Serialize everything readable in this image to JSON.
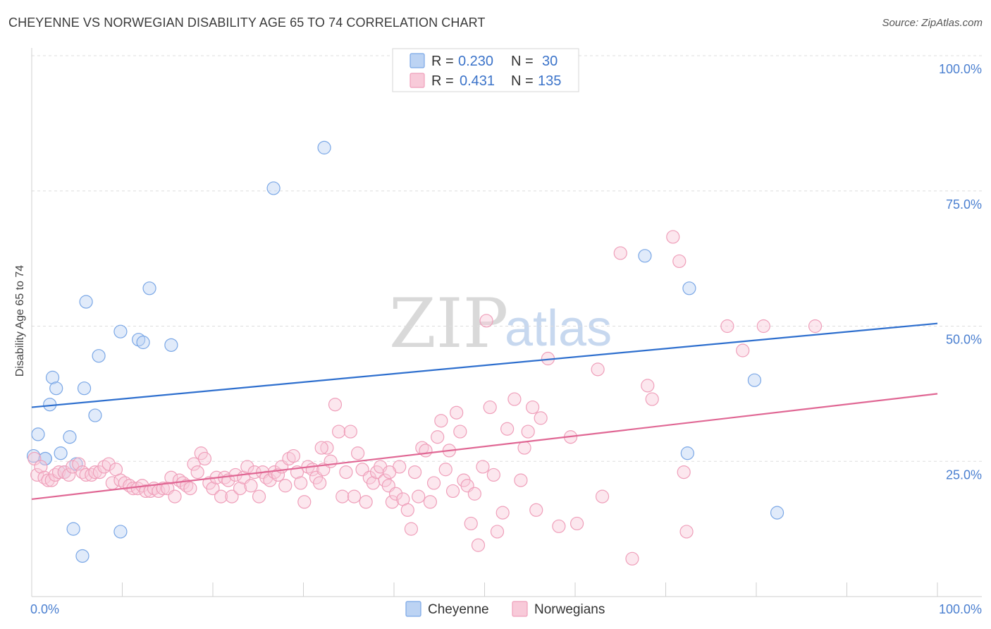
{
  "header": {
    "title": "CHEYENNE VS NORWEGIAN DISABILITY AGE 65 TO 74 CORRELATION CHART",
    "source": "Source: ZipAtlas.com"
  },
  "watermark": {
    "zip": "ZIP",
    "atlas": "atlas"
  },
  "chart_data": {
    "type": "scatter",
    "title": "CHEYENNE VS NORWEGIAN DISABILITY AGE 65 TO 74 CORRELATION CHART",
    "xlabel": "",
    "ylabel": "Disability Age 65 to 74",
    "xlim": [
      0,
      100
    ],
    "ylim": [
      0,
      100
    ],
    "x_tick_labels": [
      "0.0%",
      "100.0%"
    ],
    "y_ticks": [
      25,
      50,
      75,
      100
    ],
    "y_tick_labels": [
      "25.0%",
      "50.0%",
      "75.0%",
      "100.0%"
    ],
    "grid": true,
    "legend": [
      {
        "name": "Cheyenne",
        "r_label": "R =",
        "r_value": "0.230",
        "n_label": "N =",
        "n_value": "30"
      },
      {
        "name": "Norwegians",
        "r_label": "R =",
        "r_value": "0.431",
        "n_label": "N =",
        "n_value": "135"
      }
    ],
    "series": [
      {
        "name": "Cheyenne",
        "color": "#7aa7e6",
        "fill": "#bcd3f3",
        "line_color": "#2e6fce",
        "trend": [
          [
            0,
            35.0
          ],
          [
            100,
            50.5
          ]
        ],
        "points": [
          [
            0.2,
            26
          ],
          [
            0.7,
            30
          ],
          [
            1.5,
            25.5
          ],
          [
            2.0,
            35.5
          ],
          [
            2.3,
            40.5
          ],
          [
            2.7,
            38.5
          ],
          [
            3.2,
            26.5
          ],
          [
            3.6,
            23.0
          ],
          [
            4.2,
            29.5
          ],
          [
            4.6,
            12.5
          ],
          [
            4.9,
            24.5
          ],
          [
            5.6,
            7.5
          ],
          [
            5.8,
            38.5
          ],
          [
            6.0,
            54.5
          ],
          [
            7.0,
            33.5
          ],
          [
            7.4,
            44.5
          ],
          [
            9.8,
            49.0
          ],
          [
            9.8,
            12.0
          ],
          [
            11.8,
            47.5
          ],
          [
            12.3,
            47.0
          ],
          [
            13.0,
            57.0
          ],
          [
            15.4,
            46.5
          ],
          [
            26.7,
            75.5
          ],
          [
            32.3,
            83.0
          ],
          [
            67.7,
            63.0
          ],
          [
            72.4,
            26.5
          ],
          [
            72.6,
            57.0
          ],
          [
            79.8,
            40.0
          ],
          [
            82.3,
            15.5
          ],
          [
            1.5,
            25.5
          ]
        ]
      },
      {
        "name": "Norwegians",
        "color": "#ef9fba",
        "fill": "#f8cad9",
        "line_color": "#e06794",
        "trend": [
          [
            0,
            18.0
          ],
          [
            100,
            37.5
          ]
        ],
        "points": [
          [
            0.3,
            25.5
          ],
          [
            0.6,
            22.5
          ],
          [
            1.0,
            24.0
          ],
          [
            1.4,
            22.0
          ],
          [
            1.8,
            21.5
          ],
          [
            2.2,
            21.5
          ],
          [
            2.6,
            22.5
          ],
          [
            3.0,
            23.0
          ],
          [
            3.6,
            23.0
          ],
          [
            4.1,
            22.5
          ],
          [
            4.5,
            24.0
          ],
          [
            5.2,
            24.5
          ],
          [
            5.6,
            23.0
          ],
          [
            6.0,
            22.5
          ],
          [
            6.6,
            22.5
          ],
          [
            7.0,
            23.0
          ],
          [
            7.5,
            23.0
          ],
          [
            8.0,
            24.0
          ],
          [
            8.5,
            24.5
          ],
          [
            8.9,
            21.0
          ],
          [
            9.3,
            23.5
          ],
          [
            9.8,
            21.5
          ],
          [
            10.3,
            21.0
          ],
          [
            10.8,
            20.5
          ],
          [
            11.2,
            20.0
          ],
          [
            11.7,
            20.0
          ],
          [
            12.2,
            20.5
          ],
          [
            12.6,
            19.5
          ],
          [
            13.1,
            19.5
          ],
          [
            13.5,
            20.0
          ],
          [
            14.0,
            19.5
          ],
          [
            14.5,
            20.0
          ],
          [
            15.0,
            20.0
          ],
          [
            15.4,
            22.0
          ],
          [
            15.8,
            18.5
          ],
          [
            16.3,
            21.5
          ],
          [
            16.7,
            21.0
          ],
          [
            17.1,
            20.5
          ],
          [
            17.5,
            20.0
          ],
          [
            17.9,
            24.5
          ],
          [
            18.3,
            23.0
          ],
          [
            18.7,
            26.5
          ],
          [
            19.1,
            25.5
          ],
          [
            19.6,
            21.0
          ],
          [
            20.0,
            20.0
          ],
          [
            20.4,
            22.0
          ],
          [
            20.9,
            18.5
          ],
          [
            21.3,
            22.0
          ],
          [
            21.7,
            21.5
          ],
          [
            22.1,
            18.5
          ],
          [
            22.5,
            22.5
          ],
          [
            23.0,
            20.0
          ],
          [
            23.4,
            22.0
          ],
          [
            23.8,
            24.0
          ],
          [
            24.2,
            20.5
          ],
          [
            24.6,
            23.0
          ],
          [
            25.1,
            18.5
          ],
          [
            25.5,
            23.0
          ],
          [
            25.9,
            22.0
          ],
          [
            26.3,
            21.5
          ],
          [
            26.8,
            23.0
          ],
          [
            27.2,
            22.5
          ],
          [
            27.6,
            24.0
          ],
          [
            28.0,
            20.5
          ],
          [
            28.4,
            25.5
          ],
          [
            28.9,
            26.0
          ],
          [
            29.3,
            23.0
          ],
          [
            29.7,
            21.0
          ],
          [
            30.1,
            17.5
          ],
          [
            30.5,
            24.0
          ],
          [
            31.0,
            23.5
          ],
          [
            31.4,
            22.0
          ],
          [
            31.8,
            21.0
          ],
          [
            32.2,
            23.5
          ],
          [
            32.6,
            27.5
          ],
          [
            33.0,
            25.0
          ],
          [
            33.5,
            35.5
          ],
          [
            33.9,
            30.5
          ],
          [
            34.3,
            18.5
          ],
          [
            34.7,
            23.0
          ],
          [
            35.2,
            30.5
          ],
          [
            35.6,
            18.5
          ],
          [
            36.0,
            26.5
          ],
          [
            36.5,
            23.5
          ],
          [
            36.9,
            17.5
          ],
          [
            37.3,
            22.0
          ],
          [
            37.7,
            21.0
          ],
          [
            38.1,
            23.0
          ],
          [
            38.5,
            24.0
          ],
          [
            39.0,
            21.5
          ],
          [
            39.4,
            20.5
          ],
          [
            39.8,
            17.5
          ],
          [
            40.2,
            19.0
          ],
          [
            40.6,
            24.0
          ],
          [
            41.0,
            18.0
          ],
          [
            41.5,
            16.0
          ],
          [
            41.9,
            12.5
          ],
          [
            42.3,
            23.0
          ],
          [
            42.7,
            18.5
          ],
          [
            43.1,
            27.5
          ],
          [
            43.5,
            27.0
          ],
          [
            44.0,
            17.5
          ],
          [
            44.4,
            21.0
          ],
          [
            44.8,
            29.5
          ],
          [
            45.2,
            32.5
          ],
          [
            45.7,
            23.5
          ],
          [
            46.1,
            27.0
          ],
          [
            46.5,
            19.5
          ],
          [
            46.9,
            34.0
          ],
          [
            47.3,
            30.5
          ],
          [
            47.7,
            21.5
          ],
          [
            48.1,
            20.5
          ],
          [
            48.5,
            13.5
          ],
          [
            48.9,
            19.0
          ],
          [
            49.3,
            9.5
          ],
          [
            49.8,
            24.0
          ],
          [
            50.2,
            51.0
          ],
          [
            50.6,
            35.0
          ],
          [
            51.0,
            22.5
          ],
          [
            51.4,
            12.0
          ],
          [
            52.0,
            15.5
          ],
          [
            53.3,
            36.5
          ],
          [
            54.0,
            21.5
          ],
          [
            54.4,
            27.5
          ],
          [
            54.8,
            30.5
          ],
          [
            55.3,
            35.0
          ],
          [
            55.7,
            16.0
          ],
          [
            56.2,
            33.0
          ],
          [
            57.0,
            44.0
          ],
          [
            58.2,
            13.0
          ],
          [
            59.5,
            29.5
          ],
          [
            60.2,
            13.5
          ],
          [
            62.5,
            42.0
          ],
          [
            63.0,
            18.5
          ],
          [
            65.0,
            63.5
          ],
          [
            66.3,
            7.0
          ],
          [
            68.0,
            39.0
          ],
          [
            68.5,
            36.5
          ],
          [
            70.8,
            66.5
          ],
          [
            71.5,
            62.0
          ],
          [
            72.0,
            23.0
          ],
          [
            72.3,
            12.0
          ],
          [
            76.8,
            50.0
          ],
          [
            78.5,
            45.5
          ],
          [
            80.8,
            50.0
          ],
          [
            86.5,
            50.0
          ],
          [
            32.0,
            27.5
          ],
          [
            39.5,
            23.0
          ],
          [
            52.5,
            31.0
          ]
        ]
      }
    ]
  }
}
